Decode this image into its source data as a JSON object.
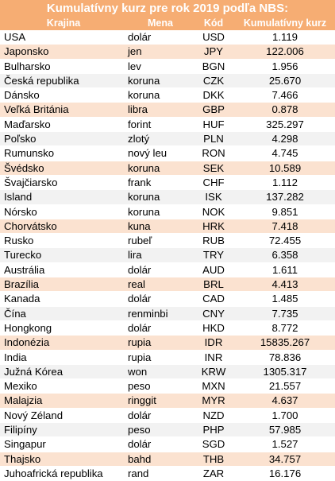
{
  "title": "Kumulatívny kurz pre rok 2019 podľa NBS:",
  "headers": {
    "country": "Krajina",
    "currency": "Mena",
    "code": "Kód",
    "rate": "Kumulatívny kurz"
  },
  "colors": {
    "header_bg": "#f6ad73",
    "highlight_row": "#fbe2d0",
    "stripe_row": "#f2f2f2"
  },
  "rows": [
    {
      "country": "USA",
      "currency": "dolár",
      "code": "USD",
      "rate": "1.119",
      "style": "odd"
    },
    {
      "country": "Japonsko",
      "currency": "jen",
      "code": "JPY",
      "rate": "122.006",
      "style": "hl"
    },
    {
      "country": "Bulharsko",
      "currency": "lev",
      "code": "BGN",
      "rate": "1.956",
      "style": "odd"
    },
    {
      "country": "Česká republika",
      "currency": "koruna",
      "code": "CZK",
      "rate": "25.670",
      "style": "even"
    },
    {
      "country": "Dánsko",
      "currency": "koruna",
      "code": "DKK",
      "rate": "7.466",
      "style": "odd"
    },
    {
      "country": "Veľká Británia",
      "currency": "libra",
      "code": "GBP",
      "rate": "0.878",
      "style": "hl"
    },
    {
      "country": "Maďarsko",
      "currency": "forint",
      "code": "HUF",
      "rate": "325.297",
      "style": "odd"
    },
    {
      "country": "Poľsko",
      "currency": "zlotý",
      "code": "PLN",
      "rate": "4.298",
      "style": "even"
    },
    {
      "country": "Rumunsko",
      "currency": "nový leu",
      "code": "RON",
      "rate": "4.745",
      "style": "odd"
    },
    {
      "country": "Švédsko",
      "currency": "koruna",
      "code": "SEK",
      "rate": "10.589",
      "style": "hl"
    },
    {
      "country": "Švajčiarsko",
      "currency": "frank",
      "code": "CHF",
      "rate": "1.112",
      "style": "odd"
    },
    {
      "country": "Island",
      "currency": "koruna",
      "code": "ISK",
      "rate": "137.282",
      "style": "even"
    },
    {
      "country": "Nórsko",
      "currency": "koruna",
      "code": "NOK",
      "rate": "9.851",
      "style": "odd"
    },
    {
      "country": "Chorvátsko",
      "currency": "kuna",
      "code": "HRK",
      "rate": "7.418",
      "style": "hl"
    },
    {
      "country": "Rusko",
      "currency": "rubeľ",
      "code": "RUB",
      "rate": "72.455",
      "style": "odd"
    },
    {
      "country": "Turecko",
      "currency": "lira",
      "code": "TRY",
      "rate": "6.358",
      "style": "even"
    },
    {
      "country": "Austrália",
      "currency": "dolár",
      "code": "AUD",
      "rate": "1.611",
      "style": "odd"
    },
    {
      "country": "Brazília",
      "currency": "real",
      "code": "BRL",
      "rate": "4.413",
      "style": "hl"
    },
    {
      "country": "Kanada",
      "currency": "dolár",
      "code": "CAD",
      "rate": "1.485",
      "style": "odd"
    },
    {
      "country": "Čína",
      "currency": "renminbi",
      "code": "CNY",
      "rate": "7.735",
      "style": "even"
    },
    {
      "country": "Hongkong",
      "currency": "dolár",
      "code": "HKD",
      "rate": "8.772",
      "style": "odd"
    },
    {
      "country": "Indonézia",
      "currency": "rupia",
      "code": "IDR",
      "rate": "15835.267",
      "style": "hl"
    },
    {
      "country": "India",
      "currency": "rupia",
      "code": "INR",
      "rate": "78.836",
      "style": "odd"
    },
    {
      "country": "Južná Kórea",
      "currency": "won",
      "code": "KRW",
      "rate": "1305.317",
      "style": "even"
    },
    {
      "country": "Mexiko",
      "currency": "peso",
      "code": "MXN",
      "rate": "21.557",
      "style": "odd"
    },
    {
      "country": "Malajzia",
      "currency": "ringgit",
      "code": "MYR",
      "rate": "4.637",
      "style": "hl"
    },
    {
      "country": "Nový Zéland",
      "currency": "dolár",
      "code": "NZD",
      "rate": "1.700",
      "style": "odd"
    },
    {
      "country": "Filipíny",
      "currency": "peso",
      "code": "PHP",
      "rate": "57.985",
      "style": "even"
    },
    {
      "country": "Singapur",
      "currency": "dolár",
      "code": "SGD",
      "rate": "1.527",
      "style": "odd"
    },
    {
      "country": "Thajsko",
      "currency": "bahd",
      "code": "THB",
      "rate": "34.757",
      "style": "hl"
    },
    {
      "country": "Juhoafrická republika",
      "currency": "rand",
      "code": "ZAR",
      "rate": "16.176",
      "style": "odd"
    }
  ]
}
